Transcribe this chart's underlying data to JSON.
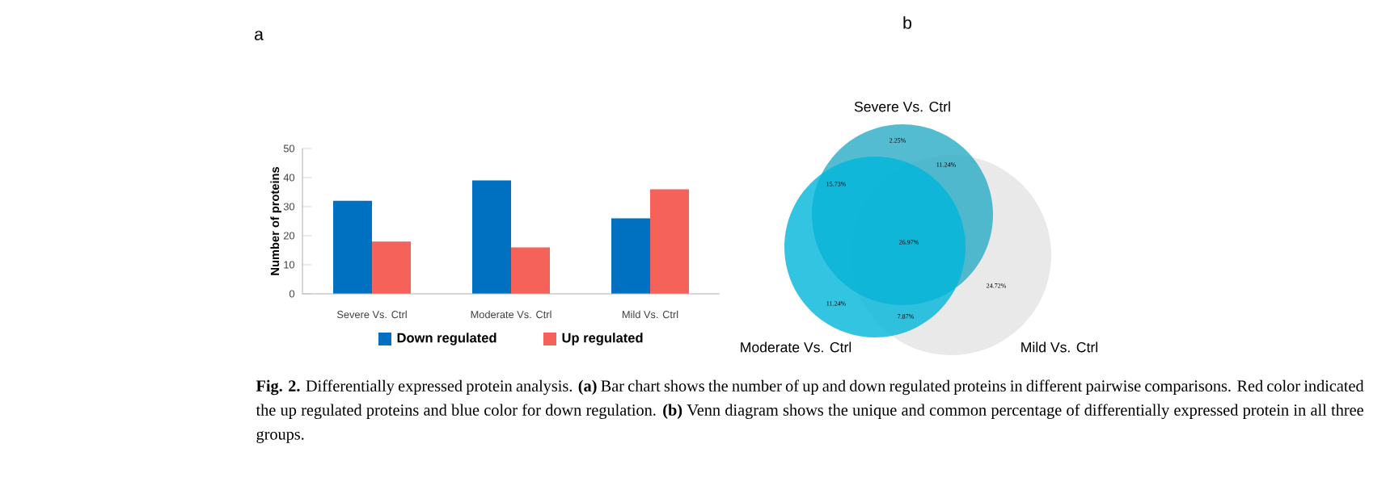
{
  "chart_data": [
    {
      "type": "bar",
      "title": "a",
      "ylabel": "Number of proteins",
      "categories": [
        "Severe Vs. Ctrl",
        "Moderate Vs. Ctrl",
        "Mild Vs. Ctrl"
      ],
      "series": [
        {
          "name": "Down regulated",
          "color": "#0070c0",
          "values": [
            32,
            39,
            26
          ]
        },
        {
          "name": "Up regulated",
          "color": "#f4625a",
          "values": [
            18,
            16,
            36
          ]
        }
      ],
      "ylim": [
        0,
        50
      ],
      "yticks": [
        0,
        10,
        20,
        30,
        40,
        50
      ],
      "legend": "bottom",
      "annotations": [
        "**Fig. 2.** Differentially expressed protein analysis. **(a)** Bar chart shows the number of up and down regulated proteins in different pairwise comparisons. Red color indicated the up regulated proteins and blue color for down regulation. **(b)** Venn diagram shows the unique and common percentage of differentially expressed protein in all three groups."
      ]
    },
    {
      "type": "other",
      "title": "b",
      "categories": [
        "Severe Vs. Ctrl",
        "Moderate Vs. Ctrl",
        "Mild Vs. Ctrl"
      ],
      "colors": [
        "#29abc6",
        "#00b5d9",
        "#e4e4e4"
      ],
      "annotations": [
        "2.25%",
        "11.24%",
        "15.73%",
        "26.97%",
        "11.24%",
        "7.87%",
        "24.72%"
      ]
    }
  ]
}
